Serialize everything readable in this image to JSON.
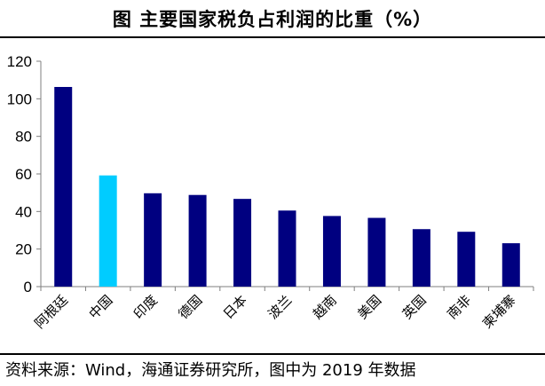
{
  "header": {
    "title": "图 主要国家税负占利润的比重（%）"
  },
  "footer": {
    "source": "资料来源：Wind，海通证券研究所，图中为 2019 年数据"
  },
  "colors": {
    "bar_default": "#000080",
    "bar_highlight": "#00CCFF",
    "axis": "#7F7F7F"
  },
  "chart_data": {
    "type": "bar",
    "categories": [
      "阿根廷",
      "中国",
      "印度",
      "德国",
      "日本",
      "波兰",
      "越南",
      "美国",
      "英国",
      "南非",
      "柬埔寨"
    ],
    "values": [
      106.3,
      59.2,
      49.7,
      48.8,
      46.7,
      40.5,
      37.6,
      36.6,
      30.6,
      29.2,
      23.1
    ],
    "highlight_category": "中国",
    "yticks": [
      0,
      20,
      40,
      60,
      80,
      100,
      120
    ],
    "ylim": [
      0,
      120
    ],
    "title": "",
    "xlabel": "",
    "ylabel": "",
    "grid": false,
    "legend": false
  }
}
